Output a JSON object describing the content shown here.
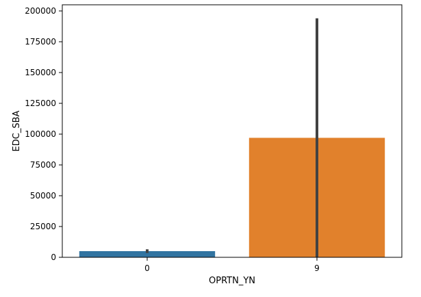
{
  "chart_data": {
    "type": "bar",
    "categories": [
      "0",
      "9"
    ],
    "values": [
      5000,
      97000
    ],
    "error_bars": [
      {
        "low": 3500,
        "high": 6500
      },
      {
        "low": 0,
        "high": 194000
      }
    ],
    "xlabel": "OPRTN_YN",
    "ylabel": "EDC_SBA",
    "ylim": [
      0,
      205000
    ],
    "yticks": [
      0,
      25000,
      50000,
      75000,
      100000,
      125000,
      150000,
      175000,
      200000
    ],
    "ytick_labels": [
      "0",
      "25000",
      "50000",
      "75000",
      "100000",
      "125000",
      "150000",
      "175000",
      "200000"
    ],
    "grid": false,
    "legend": "none",
    "colors": {
      "bars": [
        "#3274a1",
        "#e1812c"
      ],
      "error_bar": "#424242",
      "axis": "#000000"
    }
  }
}
